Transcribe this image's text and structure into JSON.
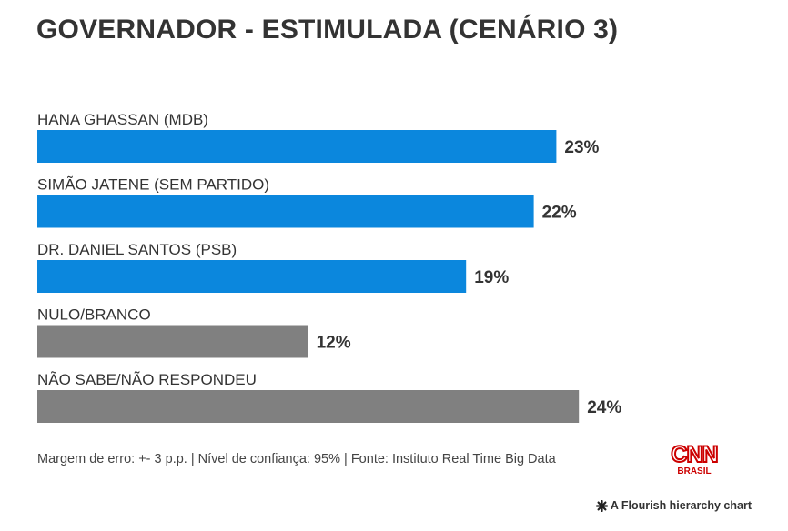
{
  "chart_data": {
    "type": "bar",
    "orientation": "horizontal",
    "title": "GOVERNADOR - ESTIMULADA (CENÁRIO 3)",
    "xlim": [
      0,
      25
    ],
    "grid": false,
    "categories": [
      "HANA GHASSAN (MDB)",
      "SIMÃO JATENE (SEM PARTIDO)",
      "DR. DANIEL SANTOS (PSB)",
      "NULO/BRANCO",
      "NÃO SABE/NÃO RESPONDEU"
    ],
    "values": [
      23,
      22,
      19,
      12,
      24
    ],
    "value_labels": [
      "23%",
      "22%",
      "19%",
      "12%",
      "24%"
    ],
    "colors": [
      "#0b87dd",
      "#0b87dd",
      "#0b87dd",
      "#808080",
      "#808080"
    ]
  },
  "footnote": "Margem de erro: +- 3 p.p. | Nível de confiança: 95% | Fonte: Instituto Real Time Big Data",
  "logo": {
    "brand": "CNN",
    "sub": "BRASIL",
    "color": "#cc0000"
  },
  "attribution": {
    "icon": "flourish-asterisk-icon",
    "text": "A Flourish hierarchy chart"
  }
}
